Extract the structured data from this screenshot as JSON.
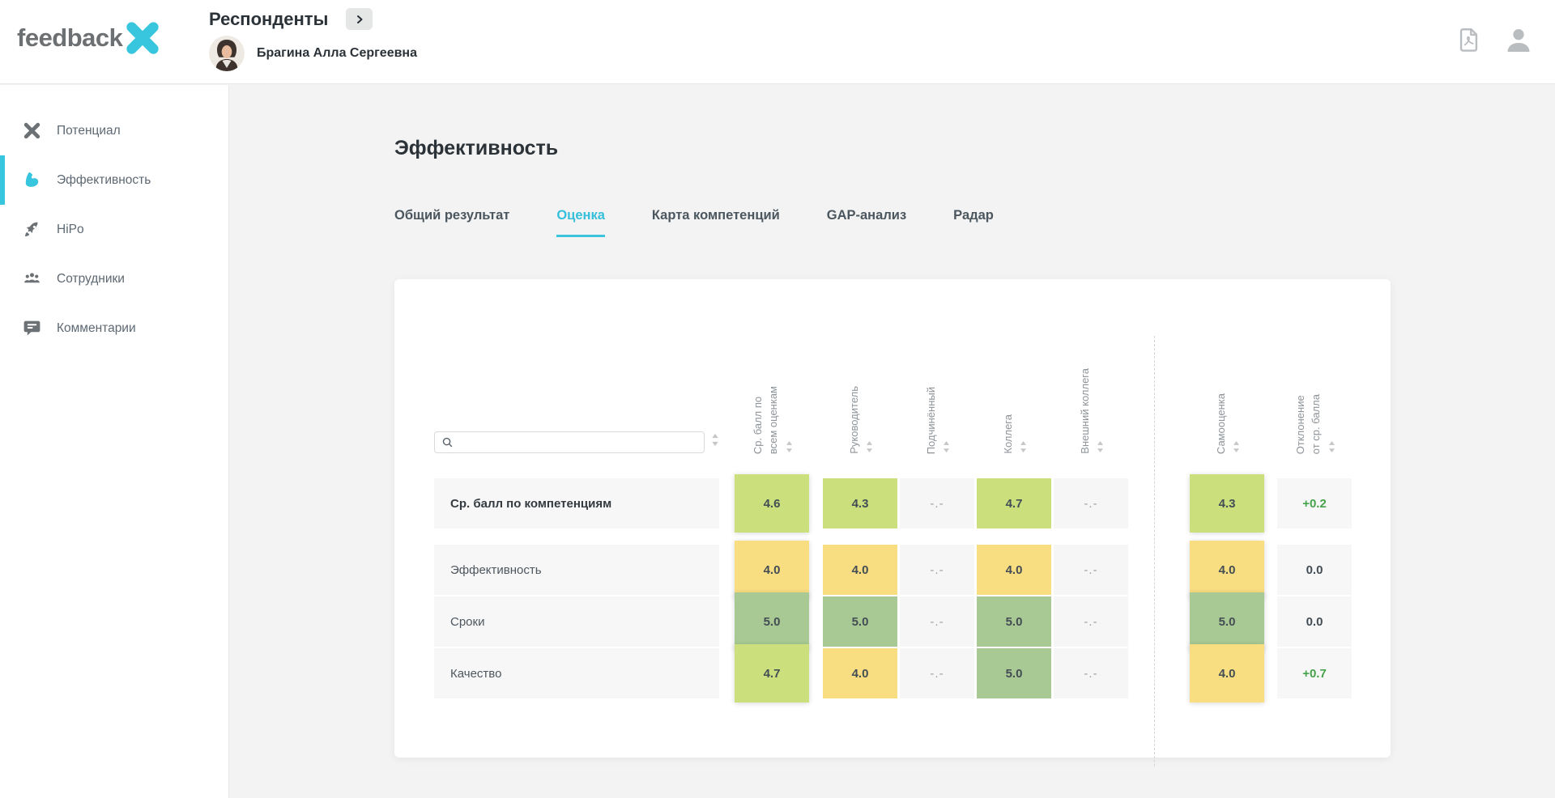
{
  "brand": {
    "text": "feedback",
    "x_color": "#38c5de",
    "text_color": "#6d7072"
  },
  "topbar": {
    "title": "Респонденты",
    "user_name": "Брагина Алла Сергеевна"
  },
  "top_icons": [
    {
      "name": "pdf-export-icon"
    },
    {
      "name": "account-icon"
    }
  ],
  "sidebar": {
    "items": [
      {
        "label": "Потенциал",
        "icon": "x-icon",
        "active": false
      },
      {
        "label": "Эффективность",
        "icon": "bicep-icon",
        "active": true
      },
      {
        "label": "HiPo",
        "icon": "rocket-icon",
        "active": false
      },
      {
        "label": "Сотрудники",
        "icon": "people-icon",
        "active": false
      },
      {
        "label": "Комментарии",
        "icon": "comment-icon",
        "active": false
      }
    ]
  },
  "main": {
    "heading": "Эффективность"
  },
  "tabs": [
    {
      "label": "Общий результат",
      "active": false
    },
    {
      "label": "Оценка",
      "active": true
    },
    {
      "label": "Карта компетенций",
      "active": false
    },
    {
      "label": "GAP-анализ",
      "active": false
    },
    {
      "label": "Радар",
      "active": false
    }
  ],
  "table": {
    "search": {
      "value": "",
      "placeholder": ""
    },
    "columns": [
      {
        "label": "Ср. балл по\nвсем оценкам",
        "elevated": true
      },
      {
        "label": "Руководитель"
      },
      {
        "label": "Подчинённый"
      },
      {
        "label": "Коллега"
      },
      {
        "label": "Внешний коллега"
      },
      {
        "label": "Самооценка",
        "elevated": true
      },
      {
        "label": "Отклонение\nот ср. балла"
      }
    ],
    "rows": [
      {
        "label": "Ср. балл по компетенциям",
        "bold": true,
        "cells": [
          {
            "text": "4.6",
            "tone": "lime"
          },
          {
            "text": "4.3",
            "tone": "lime"
          },
          {
            "text": "-.-",
            "tone": "empty"
          },
          {
            "text": "4.7",
            "tone": "lime"
          },
          {
            "text": "-.-",
            "tone": "empty"
          },
          {
            "text": "4.3",
            "tone": "lime"
          },
          {
            "text": "+0.2",
            "tone": "dev-pos"
          }
        ]
      },
      {
        "label": "Эффективность",
        "bold": false,
        "cells": [
          {
            "text": "4.0",
            "tone": "yellow"
          },
          {
            "text": "4.0",
            "tone": "yellow"
          },
          {
            "text": "-.-",
            "tone": "empty"
          },
          {
            "text": "4.0",
            "tone": "yellow"
          },
          {
            "text": "-.-",
            "tone": "empty"
          },
          {
            "text": "4.0",
            "tone": "yellow"
          },
          {
            "text": "0.0",
            "tone": "dev-zero"
          }
        ]
      },
      {
        "label": "Сроки",
        "bold": false,
        "cells": [
          {
            "text": "5.0",
            "tone": "sage"
          },
          {
            "text": "5.0",
            "tone": "sage"
          },
          {
            "text": "-.-",
            "tone": "empty"
          },
          {
            "text": "5.0",
            "tone": "sage"
          },
          {
            "text": "-.-",
            "tone": "empty"
          },
          {
            "text": "5.0",
            "tone": "sage"
          },
          {
            "text": "0.0",
            "tone": "dev-zero"
          }
        ]
      },
      {
        "label": "Качество",
        "bold": false,
        "cells": [
          {
            "text": "4.7",
            "tone": "lime"
          },
          {
            "text": "4.0",
            "tone": "yellow"
          },
          {
            "text": "-.-",
            "tone": "empty"
          },
          {
            "text": "5.0",
            "tone": "sage"
          },
          {
            "text": "-.-",
            "tone": "empty"
          },
          {
            "text": "4.0",
            "tone": "yellow"
          },
          {
            "text": "+0.7",
            "tone": "dev-pos"
          }
        ]
      }
    ]
  },
  "colors": {
    "accent": "#38c5de",
    "score_high": "#a8c993",
    "score_good": "#cbe07d",
    "score_mid": "#f8dd81",
    "positive_delta": "#46a24a",
    "page_bg": "#f2f3f2"
  }
}
